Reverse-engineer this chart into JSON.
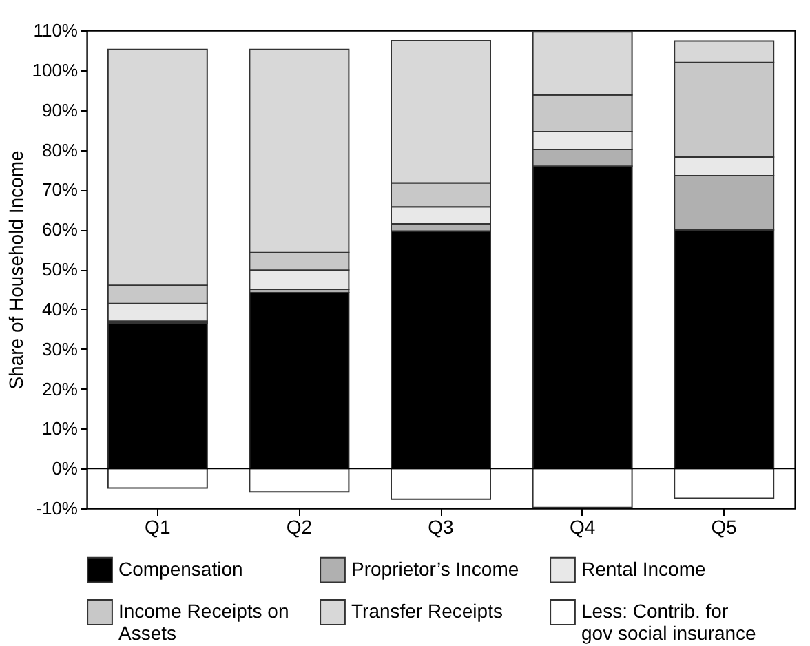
{
  "chart_data": {
    "type": "bar",
    "stacked": true,
    "ylabel": "Share of Household Income",
    "categories": [
      "Q1",
      "Q2",
      "Q3",
      "Q4",
      "Q5"
    ],
    "series": [
      {
        "name": "Compensation",
        "color": "#000000",
        "values": [
          36.5,
          44.1,
          59.6,
          75.9,
          59.9
        ]
      },
      {
        "name": "Proprietor’s Income",
        "color": "#b0b0b0",
        "values": [
          0.5,
          0.9,
          1.8,
          4.2,
          13.6
        ]
      },
      {
        "name": "Rental Income",
        "color": "#e8e8e8",
        "values": [
          4.4,
          4.8,
          4.3,
          4.5,
          4.7
        ]
      },
      {
        "name": "Income Receipts on Assets",
        "color": "#c8c8c8",
        "values": [
          4.6,
          4.4,
          6.0,
          9.2,
          23.7
        ]
      },
      {
        "name": "Transfer Receipts",
        "color": "#d8d8d8",
        "values": [
          59.2,
          51.0,
          35.7,
          15.8,
          5.4
        ]
      },
      {
        "name": "Less: Contrib. for gov social insurance",
        "color": "#ffffff",
        "values": [
          -4.9,
          -5.9,
          -7.7,
          -9.8,
          -7.5
        ]
      }
    ],
    "ylim": [
      -10,
      110
    ],
    "yticks": [
      {
        "value": -10,
        "label": "-10%"
      },
      {
        "value": 0,
        "label": "0%"
      },
      {
        "value": 10,
        "label": "10%"
      },
      {
        "value": 20,
        "label": "20%"
      },
      {
        "value": 30,
        "label": "30%"
      },
      {
        "value": 40,
        "label": "40%"
      },
      {
        "value": 50,
        "label": "50%"
      },
      {
        "value": 60,
        "label": "60%"
      },
      {
        "value": 70,
        "label": "70%"
      },
      {
        "value": 80,
        "label": "80%"
      },
      {
        "value": 90,
        "label": "90%"
      },
      {
        "value": 100,
        "label": "100%"
      },
      {
        "value": 110,
        "label": "110%"
      }
    ],
    "ref_lines": [
      {
        "axis": "y",
        "value": 0,
        "color": "#000000"
      }
    ],
    "grid": false,
    "legend": "bottom"
  }
}
